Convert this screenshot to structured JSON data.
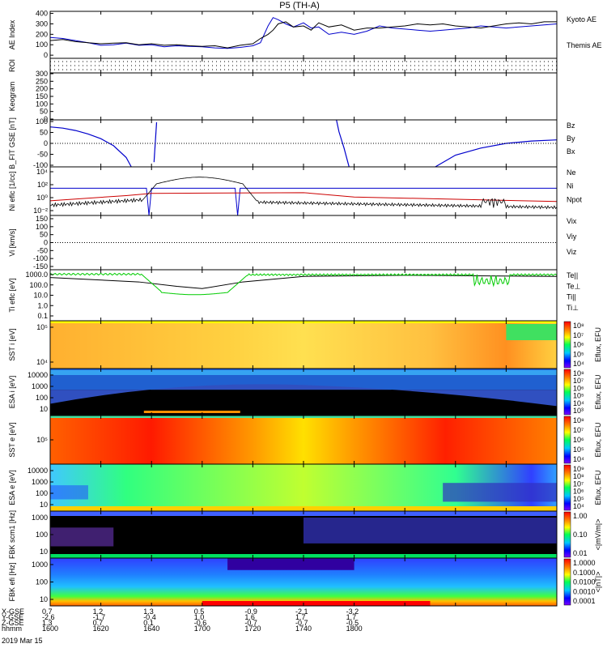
{
  "title": "P5 (TH-A)",
  "date_label": "2019 Mar 15",
  "chart_data": [
    {
      "id": "ae",
      "type": "line",
      "ylabel": "AE Index",
      "ylim": [
        -30,
        420
      ],
      "yticks": [
        "400",
        "300",
        "200",
        "100",
        "0"
      ],
      "legend": [
        {
          "label": "Kyoto AE",
          "color": "#0000cc"
        },
        {
          "label": "Themis AE",
          "color": "#000000"
        }
      ],
      "series": [
        {
          "name": "Kyoto AE",
          "color": "#0000cc",
          "x": [
            1600,
            1605,
            1610,
            1615,
            1620,
            1625,
            1630,
            1635,
            1640,
            1645,
            1650,
            1655,
            1660,
            1665,
            1670,
            1675,
            1680,
            1683,
            1686,
            1688,
            1690,
            1693,
            1696,
            1700,
            1703,
            1706,
            1710,
            1715,
            1720,
            1725,
            1730,
            1735,
            1740,
            1745,
            1750,
            1755,
            1760,
            1765,
            1770,
            1775,
            1780,
            1785,
            1790,
            1795,
            1800
          ],
          "values": [
            170,
            160,
            140,
            120,
            95,
            100,
            115,
            95,
            100,
            80,
            90,
            85,
            80,
            70,
            65,
            75,
            90,
            120,
            280,
            360,
            340,
            300,
            270,
            310,
            260,
            270,
            200,
            220,
            200,
            230,
            280,
            260,
            250,
            240,
            230,
            240,
            250,
            260,
            280,
            270,
            260,
            270,
            280,
            290,
            300
          ]
        },
        {
          "name": "Themis AE",
          "color": "#000000",
          "x": [
            1600,
            1605,
            1610,
            1615,
            1620,
            1625,
            1630,
            1635,
            1640,
            1645,
            1650,
            1655,
            1660,
            1665,
            1670,
            1675,
            1680,
            1683,
            1686,
            1688,
            1690,
            1693,
            1696,
            1700,
            1703,
            1706,
            1710,
            1715,
            1720,
            1725,
            1730,
            1735,
            1740,
            1745,
            1750,
            1755,
            1760,
            1765,
            1770,
            1775,
            1780,
            1785,
            1790,
            1795,
            1800
          ],
          "values": [
            140,
            150,
            130,
            120,
            110,
            115,
            120,
            100,
            110,
            95,
            100,
            90,
            85,
            90,
            70,
            95,
            110,
            160,
            200,
            240,
            300,
            320,
            270,
            280,
            240,
            310,
            270,
            290,
            240,
            260,
            260,
            270,
            280,
            300,
            290,
            300,
            280,
            270,
            260,
            280,
            300,
            310,
            300,
            320,
            320
          ]
        }
      ]
    },
    {
      "id": "roi",
      "type": "line",
      "ylabel": "ROI",
      "yticks": [],
      "rows": 3
    },
    {
      "id": "keogram",
      "type": "heatmap",
      "ylabel": "Keogram",
      "ylim": [
        0,
        300
      ],
      "yticks": [
        "300",
        "250",
        "200",
        "150",
        "100",
        "50",
        "0"
      ]
    },
    {
      "id": "bfit",
      "type": "line",
      "ylabel": "B_FIT GSE [nT]",
      "ylim": [
        -100,
        100
      ],
      "yticks": [
        "100",
        "50",
        "0",
        "-50",
        "-100"
      ],
      "legend": [
        {
          "label": "Bz",
          "color": "#cc0000"
        },
        {
          "label": "By",
          "color": "#00cc00"
        },
        {
          "label": "Bx",
          "color": "#0000cc"
        }
      ],
      "series": [
        {
          "name": "Bx",
          "color": "#0000cc",
          "x": [
            1600,
            1605,
            1610,
            1615,
            1620,
            1625,
            1630,
            1632
          ],
          "values": [
            70,
            65,
            55,
            40,
            20,
            -10,
            -60,
            -100
          ]
        },
        {
          "name": "Bx",
          "color": "#0000cc",
          "x": [
            1641,
            1642
          ],
          "values": [
            -80,
            90
          ]
        },
        {
          "name": "Bx",
          "color": "#0000cc",
          "x": [
            1713,
            1714,
            1716,
            1718
          ],
          "values": [
            100,
            50,
            -20,
            -100
          ]
        },
        {
          "name": "Bx",
          "color": "#0000cc",
          "x": [
            1752,
            1760,
            1770,
            1780,
            1790,
            1800
          ],
          "values": [
            -100,
            -50,
            -20,
            0,
            10,
            15
          ]
        }
      ]
    },
    {
      "id": "ni",
      "type": "line",
      "ylabel": "Ni eflc [1/cc]",
      "ylim": [
        -2.3,
        4.3
      ],
      "yticks": [
        "10⁴",
        "10²",
        "10⁰",
        "10⁻²"
      ],
      "legend": [
        {
          "label": "Ne",
          "color": "#cc0000"
        },
        {
          "label": "Ni",
          "color": "#000000"
        },
        {
          "label": "Npot",
          "color": "#0000cc"
        }
      ]
    },
    {
      "id": "vi",
      "type": "line",
      "ylabel": "Vi [km/s]",
      "ylim": [
        -175,
        175
      ],
      "yticks": [
        "150",
        "100",
        "50",
        "0",
        "-50",
        "-100",
        "-150"
      ],
      "legend": [
        {
          "label": "Vix",
          "color": "#cc0000"
        },
        {
          "label": "Viy",
          "color": "#00cc00"
        },
        {
          "label": "Viz",
          "color": "#0000cc"
        }
      ]
    },
    {
      "id": "ti",
      "type": "line",
      "ylabel": "Ti eflc [eV]",
      "ylim": [
        -1.3,
        3.3
      ],
      "yticks": [
        "1000.0",
        "100.0",
        "10.0",
        "1.0",
        "0.1"
      ],
      "legend": [
        {
          "label": "Te||",
          "color": "#000000"
        },
        {
          "label": "Te⊥",
          "color": "#cc0000"
        },
        {
          "label": "Ti||",
          "color": "#00cc00"
        },
        {
          "label": "Ti⊥",
          "color": "#0000cc"
        }
      ]
    },
    {
      "id": "sst_i",
      "type": "heatmap",
      "ylabel": "SST i [eV]",
      "yticks": [
        "10⁵",
        "10⁴"
      ]
    },
    {
      "id": "esa_i",
      "type": "heatmap",
      "ylabel": "ESA i [eV]",
      "yticks": [
        "10000",
        "1000",
        "100",
        "10"
      ]
    },
    {
      "id": "sst_e",
      "type": "heatmap",
      "ylabel": "SST e [eV]",
      "yticks": [
        "10⁵"
      ]
    },
    {
      "id": "esa_e",
      "type": "heatmap",
      "ylabel": "ESA e [eV]",
      "yticks": [
        "10000",
        "1000",
        "100",
        "10"
      ]
    },
    {
      "id": "fbk_scm",
      "type": "heatmap",
      "ylabel": "FBK scm1 [Hz]",
      "yticks": [
        "1000",
        "100",
        "10"
      ]
    },
    {
      "id": "fbk_efi",
      "type": "heatmap",
      "ylabel": "FBK efi [Hz]",
      "yticks": [
        "1000",
        "100",
        "10"
      ]
    }
  ],
  "colorbars": [
    {
      "label": "Eflux, EFU",
      "ticks": [
        "10⁸",
        "10⁷",
        "10⁶",
        "10⁵",
        "10⁴"
      ]
    },
    {
      "label": "Eflux, EFU",
      "ticks": [
        "10⁸",
        "10⁷",
        "10⁶",
        "10⁵",
        "10⁴",
        "10³"
      ]
    },
    {
      "label": "Eflux, EFU",
      "ticks": [
        "10⁸",
        "10⁷",
        "10⁶",
        "10⁵",
        "10⁴"
      ]
    },
    {
      "label": "Eflux, EFU",
      "ticks": [
        "10⁹",
        "10⁸",
        "10⁷",
        "10⁶",
        "10⁵",
        "10⁴"
      ]
    },
    {
      "label": "<|mV/m|>",
      "ticks": [
        "1.00",
        "0.10",
        "0.01"
      ]
    },
    {
      "label": "<|nT|>",
      "ticks": [
        "1.0000",
        "0.1000",
        "0.0100",
        "0.0010",
        "0.0001"
      ]
    }
  ],
  "time_axis": {
    "hhmm": [
      "1600",
      "1620",
      "1640",
      "1700",
      "1720",
      "1740",
      "1800"
    ],
    "rows": [
      {
        "label": "X-GSE",
        "values": [
          "0.7",
          "1.2",
          "1.3",
          "0.5",
          "-0.9",
          "-2.1",
          "-3.2"
        ]
      },
      {
        "label": "Y-GSE",
        "values": [
          "-2.6",
          "-1.7",
          "-0.4",
          "1.0",
          "1.6",
          "1.7",
          "1.7"
        ]
      },
      {
        "label": "Z-GSE",
        "values": [
          "1.3",
          "0.7",
          "0.1",
          "-0.6",
          "-0.7",
          "-0.7",
          "-0.5"
        ]
      },
      {
        "label": "hhmm",
        "values": [
          "1600",
          "1620",
          "1640",
          "1700",
          "1720",
          "1740",
          "1800"
        ]
      }
    ]
  }
}
